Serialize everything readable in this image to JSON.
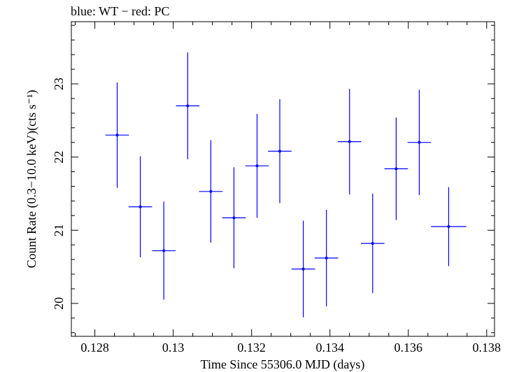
{
  "chart_data": {
    "type": "scatter",
    "title": "blue: WT − red: PC",
    "xlabel": "Time Since 55306.0 MJD (days)",
    "ylabel": "Count Rate (0.3−10.0 keV)(cts s⁻¹)",
    "xlim": [
      0.1274,
      0.1382
    ],
    "ylim": [
      19.55,
      23.85
    ],
    "x_ticks": [
      0.128,
      0.13,
      0.132,
      0.134,
      0.136,
      0.138
    ],
    "x_tick_labels": [
      "0.128",
      "0.13",
      "0.132",
      "0.134",
      "0.136",
      "0.138"
    ],
    "y_ticks": [
      20,
      21,
      22,
      23
    ],
    "y_tick_labels": [
      "20",
      "21",
      "22",
      "23"
    ],
    "grid": false,
    "legend": "none",
    "series": [
      {
        "color": "#0000ff",
        "points": [
          {
            "x": 0.12857,
            "y": 22.3,
            "xerr": 0.0003,
            "yerr": 0.72
          },
          {
            "x": 0.12916,
            "y": 21.32,
            "xerr": 0.0003,
            "yerr": 0.69
          },
          {
            "x": 0.12976,
            "y": 20.72,
            "xerr": 0.0003,
            "yerr": 0.67
          },
          {
            "x": 0.13037,
            "y": 22.7,
            "xerr": 0.0003,
            "yerr": 0.73
          },
          {
            "x": 0.13096,
            "y": 21.53,
            "xerr": 0.0003,
            "yerr": 0.7
          },
          {
            "x": 0.13155,
            "y": 21.17,
            "xerr": 0.0003,
            "yerr": 0.69
          },
          {
            "x": 0.13214,
            "y": 21.88,
            "xerr": 0.0003,
            "yerr": 0.71
          },
          {
            "x": 0.13272,
            "y": 22.08,
            "xerr": 0.0003,
            "yerr": 0.71
          },
          {
            "x": 0.13332,
            "y": 20.47,
            "xerr": 0.0003,
            "yerr": 0.66
          },
          {
            "x": 0.13391,
            "y": 20.62,
            "xerr": 0.0003,
            "yerr": 0.66
          },
          {
            "x": 0.1345,
            "y": 22.21,
            "xerr": 0.0003,
            "yerr": 0.72
          },
          {
            "x": 0.13509,
            "y": 20.82,
            "xerr": 0.0003,
            "yerr": 0.68
          },
          {
            "x": 0.13569,
            "y": 21.84,
            "xerr": 0.0003,
            "yerr": 0.7
          },
          {
            "x": 0.13628,
            "y": 22.2,
            "xerr": 0.0003,
            "yerr": 0.72
          },
          {
            "x": 0.13703,
            "y": 21.05,
            "xerr": 0.00045,
            "yerr": 0.54
          }
        ]
      }
    ]
  }
}
